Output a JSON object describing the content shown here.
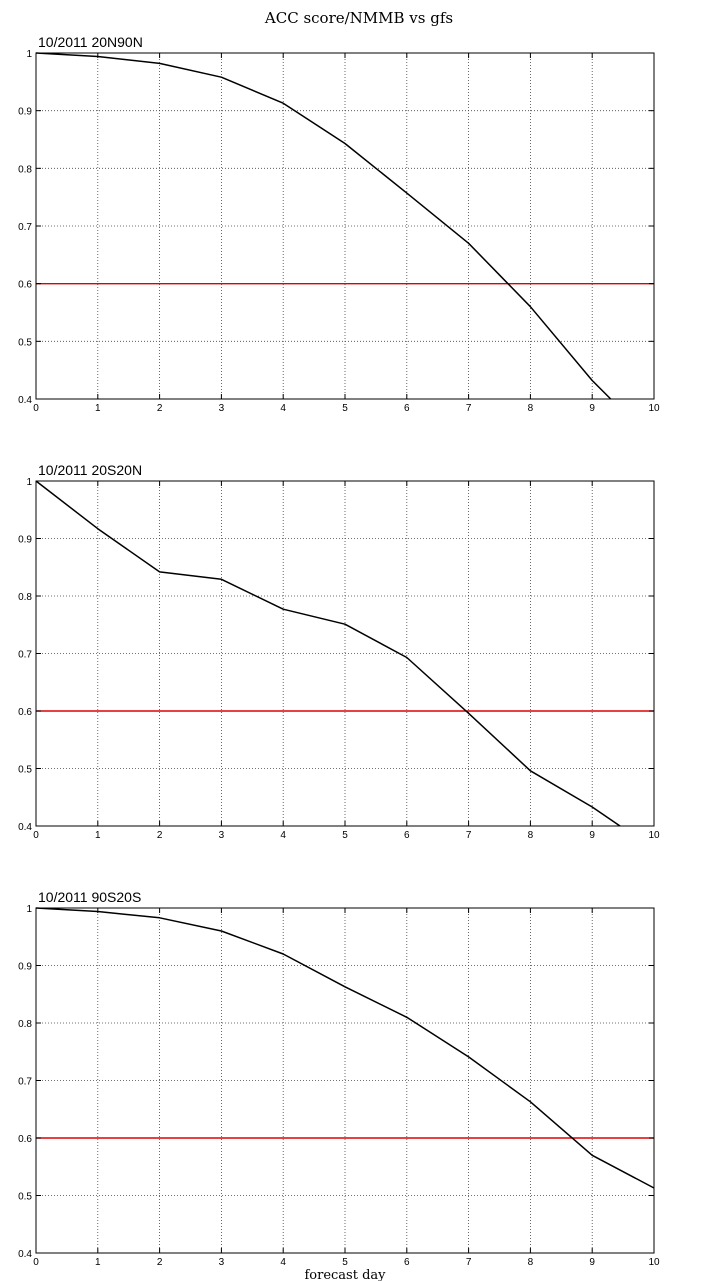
{
  "figure": {
    "title": "ACC score/NMMB vs gfs",
    "xlabel": "forecast day"
  },
  "colors": {
    "series": "#000000",
    "reference": "#e00000",
    "grid": "#444444",
    "axes": "#000000"
  },
  "chart_data": [
    {
      "type": "line",
      "title": "10/2011 20N90N",
      "xlim": [
        0,
        10
      ],
      "ylim": [
        0.4,
        1
      ],
      "xticks": [
        "0",
        "1",
        "2",
        "3",
        "4",
        "5",
        "6",
        "7",
        "8",
        "9",
        "10"
      ],
      "yticks": [
        "0.4",
        "0.5",
        "0.6",
        "0.7",
        "0.8",
        "0.9",
        "1"
      ],
      "grid": true,
      "reference_line": 0.6,
      "series": [
        {
          "x": [
            0,
            1,
            2,
            3,
            4,
            5,
            6,
            7,
            8,
            9,
            9.3
          ],
          "values": [
            1.0,
            0.994,
            0.982,
            0.958,
            0.913,
            0.843,
            0.757,
            0.67,
            0.56,
            0.432,
            0.4
          ]
        }
      ]
    },
    {
      "type": "line",
      "title": "10/2011 20S20N",
      "xlim": [
        0,
        10
      ],
      "ylim": [
        0.4,
        1
      ],
      "xticks": [
        "0",
        "1",
        "2",
        "3",
        "4",
        "5",
        "6",
        "7",
        "8",
        "9",
        "10"
      ],
      "yticks": [
        "0.4",
        "0.5",
        "0.6",
        "0.7",
        "0.8",
        "0.9",
        "1"
      ],
      "grid": true,
      "reference_line": 0.6,
      "series": [
        {
          "x": [
            0,
            1,
            2,
            3,
            4,
            5,
            6,
            7,
            8,
            9,
            9.45
          ],
          "values": [
            1.0,
            0.917,
            0.842,
            0.829,
            0.777,
            0.751,
            0.693,
            0.596,
            0.496,
            0.433,
            0.4
          ]
        }
      ]
    },
    {
      "type": "line",
      "title": "10/2011 90S20S",
      "xlim": [
        0,
        10
      ],
      "ylim": [
        0.4,
        1
      ],
      "xticks": [
        "0",
        "1",
        "2",
        "3",
        "4",
        "5",
        "6",
        "7",
        "8",
        "9",
        "10"
      ],
      "yticks": [
        "0.4",
        "0.5",
        "0.6",
        "0.7",
        "0.8",
        "0.9",
        "1"
      ],
      "grid": true,
      "reference_line": 0.6,
      "series": [
        {
          "x": [
            0,
            1,
            2,
            3,
            4,
            5,
            6,
            7,
            8,
            9,
            10
          ],
          "values": [
            1.0,
            0.994,
            0.983,
            0.96,
            0.92,
            0.863,
            0.81,
            0.741,
            0.663,
            0.57,
            0.513
          ]
        }
      ]
    }
  ]
}
